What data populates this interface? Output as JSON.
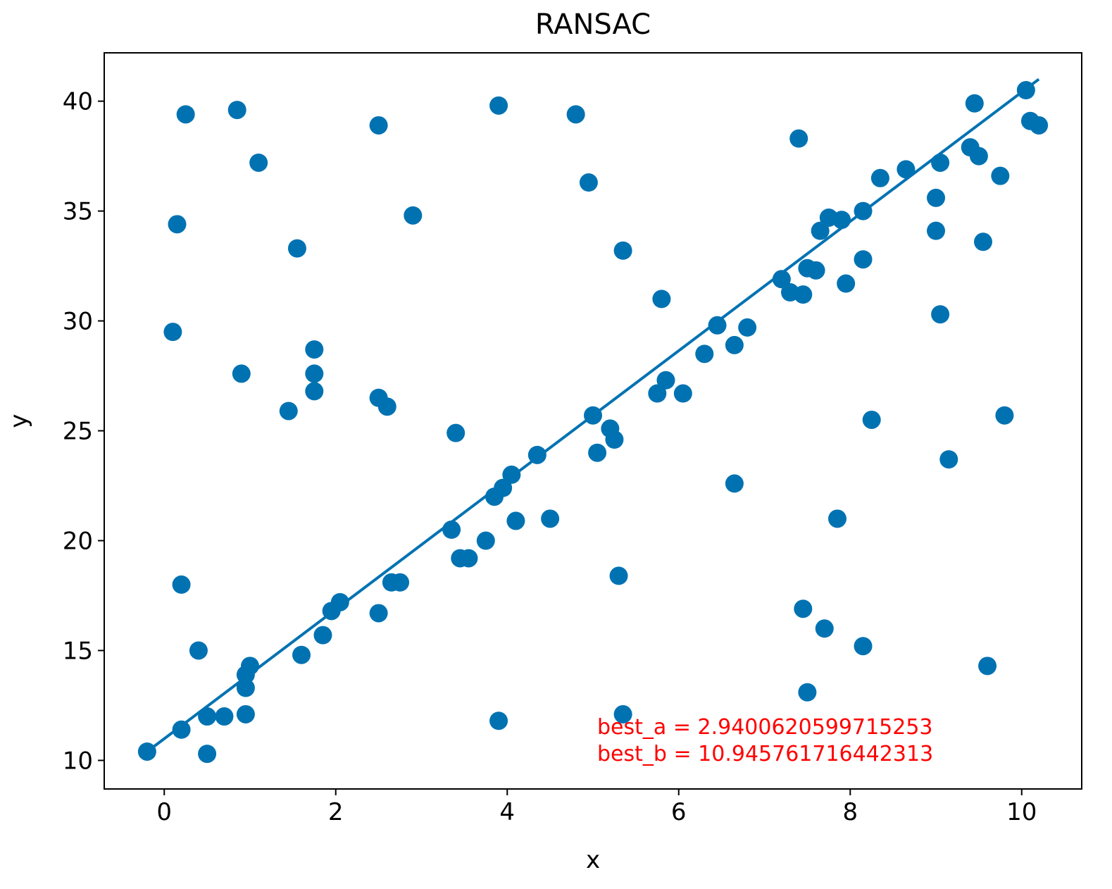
{
  "chart_data": {
    "type": "scatter",
    "title": "RANSAC",
    "xlabel": "x",
    "ylabel": "y",
    "xlim": [
      -0.7,
      10.7
    ],
    "ylim": [
      8.7,
      42.2
    ],
    "xticks": [
      0,
      2,
      4,
      6,
      8,
      10
    ],
    "yticks": [
      10,
      15,
      20,
      25,
      30,
      35,
      40
    ],
    "grid": false,
    "colors": {
      "points": "#0072B2",
      "line": "#0072B2",
      "annotation": "#ff0000"
    },
    "points": [
      [
        -0.2,
        10.4
      ],
      [
        0.2,
        11.4
      ],
      [
        0.5,
        10.3
      ],
      [
        0.5,
        12.0
      ],
      [
        0.7,
        12.0
      ],
      [
        0.95,
        12.1
      ],
      [
        0.95,
        13.3
      ],
      [
        0.95,
        13.9
      ],
      [
        1.0,
        14.3
      ],
      [
        0.4,
        15.0
      ],
      [
        0.2,
        18.0
      ],
      [
        1.6,
        14.8
      ],
      [
        1.85,
        15.7
      ],
      [
        1.95,
        16.8
      ],
      [
        2.05,
        17.2
      ],
      [
        2.5,
        16.7
      ],
      [
        2.65,
        18.1
      ],
      [
        2.75,
        18.1
      ],
      [
        3.35,
        20.5
      ],
      [
        3.45,
        19.2
      ],
      [
        3.55,
        19.2
      ],
      [
        3.75,
        20.0
      ],
      [
        3.85,
        22.0
      ],
      [
        3.95,
        22.4
      ],
      [
        4.05,
        23.0
      ],
      [
        4.1,
        20.9
      ],
      [
        4.35,
        23.9
      ],
      [
        4.5,
        21.0
      ],
      [
        3.9,
        11.8
      ],
      [
        5.0,
        25.7
      ],
      [
        5.05,
        24.0
      ],
      [
        5.2,
        25.1
      ],
      [
        5.25,
        24.6
      ],
      [
        5.3,
        18.4
      ],
      [
        5.35,
        12.1
      ],
      [
        5.75,
        26.7
      ],
      [
        5.85,
        27.3
      ],
      [
        6.05,
        26.7
      ],
      [
        6.3,
        28.5
      ],
      [
        6.45,
        29.8
      ],
      [
        6.65,
        28.9
      ],
      [
        6.8,
        29.7
      ],
      [
        6.65,
        22.6
      ],
      [
        7.2,
        31.9
      ],
      [
        7.3,
        31.3
      ],
      [
        7.45,
        31.2
      ],
      [
        7.5,
        32.4
      ],
      [
        7.6,
        32.3
      ],
      [
        7.65,
        34.1
      ],
      [
        7.75,
        34.7
      ],
      [
        7.9,
        34.6
      ],
      [
        7.95,
        31.7
      ],
      [
        8.15,
        35.0
      ],
      [
        8.15,
        32.8
      ],
      [
        8.35,
        36.5
      ],
      [
        8.65,
        36.9
      ],
      [
        9.05,
        37.2
      ],
      [
        9.0,
        35.6
      ],
      [
        9.0,
        34.1
      ],
      [
        9.05,
        30.3
      ],
      [
        9.15,
        23.7
      ],
      [
        9.4,
        37.9
      ],
      [
        9.5,
        37.5
      ],
      [
        9.55,
        33.6
      ],
      [
        9.45,
        39.9
      ],
      [
        9.75,
        36.6
      ],
      [
        9.8,
        25.7
      ],
      [
        9.6,
        14.3
      ],
      [
        10.1,
        39.1
      ],
      [
        10.2,
        38.9
      ],
      [
        10.05,
        40.5
      ],
      [
        8.25,
        25.5
      ],
      [
        8.15,
        15.2
      ],
      [
        7.85,
        21.0
      ],
      [
        7.7,
        16.0
      ],
      [
        7.45,
        16.9
      ],
      [
        7.5,
        13.1
      ],
      [
        7.4,
        38.3
      ],
      [
        0.25,
        39.4
      ],
      [
        0.85,
        39.6
      ],
      [
        1.1,
        37.2
      ],
      [
        0.15,
        34.4
      ],
      [
        0.1,
        29.5
      ],
      [
        0.9,
        27.6
      ],
      [
        1.55,
        33.3
      ],
      [
        1.75,
        28.7
      ],
      [
        1.75,
        27.6
      ],
      [
        1.75,
        26.8
      ],
      [
        1.45,
        25.9
      ],
      [
        2.5,
        38.9
      ],
      [
        2.5,
        26.5
      ],
      [
        2.6,
        26.1
      ],
      [
        2.9,
        34.8
      ],
      [
        3.4,
        24.9
      ],
      [
        3.9,
        39.8
      ],
      [
        4.8,
        39.4
      ],
      [
        4.95,
        36.3
      ],
      [
        5.35,
        33.2
      ],
      [
        5.8,
        31.0
      ]
    ],
    "fit_line": {
      "x": [
        -0.2,
        10.2
      ],
      "y": [
        10.4,
        41.0
      ]
    },
    "annotations": [
      "best_a = 2.9400620599715253",
      "best_b = 10.945761716442313"
    ]
  }
}
